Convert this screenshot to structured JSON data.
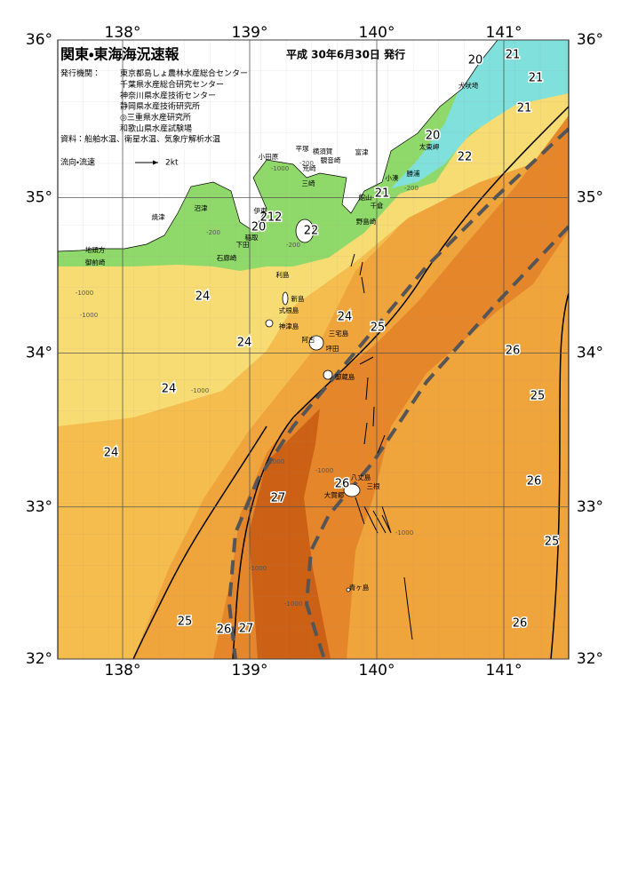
{
  "header": {
    "title": "関東・東海海況速報",
    "issue": "平成 30年6月30日 発行"
  },
  "issuers": {
    "label": "発行機関：",
    "items": [
      "東京都島しょ農林水産総合センター",
      "千葉県水産総合研究センター",
      "神奈川県水産技術センター",
      "静岡県水産技術研究所",
      "◎三重県水産研究所",
      "和歌山県水産試験場"
    ]
  },
  "materials": "資料：船舶水温、衛星水温、気象庁解析水温",
  "legend": {
    "label": "流向・流速",
    "scale": "2kt"
  },
  "axes": {
    "lon": [
      {
        "value": 138,
        "label": "138°"
      },
      {
        "value": 139,
        "label": "139°"
      },
      {
        "value": 140,
        "label": "140°"
      },
      {
        "value": 141,
        "label": "141°"
      }
    ],
    "lat": [
      {
        "value": 36,
        "label": "36°"
      },
      {
        "value": 35,
        "label": "35°"
      },
      {
        "value": 34,
        "label": "34°"
      },
      {
        "value": 33,
        "label": "33°"
      },
      {
        "value": 32,
        "label": "32°"
      }
    ]
  },
  "temperature_labels": [
    "20",
    "21",
    "21",
    "21",
    "20",
    "22",
    "21",
    "20",
    "212",
    "22",
    "24",
    "24",
    "25",
    "24",
    "26",
    "24",
    "25",
    "24",
    "26",
    "26",
    "27",
    "25",
    "25",
    "26",
    "27",
    "26"
  ],
  "place_names": [
    "犬吠埼",
    "小田原",
    "平塚",
    "横須賀",
    "観音崎",
    "荒崎",
    "三崎",
    "富津",
    "太東岬",
    "勝浦",
    "小湊",
    "館山",
    "千倉",
    "野島崎",
    "沼津",
    "焼津",
    "伊東",
    "稲取",
    "下田",
    "石廊崎",
    "地頭方",
    "御前崎",
    "利島",
    "新島",
    "式根島",
    "神津島",
    "三宅島",
    "阿古",
    "坪田",
    "御蔵島",
    "八丈島",
    "大賀郷",
    "三根",
    "青ヶ島"
  ],
  "depth_labels": [
    "-1000",
    "-200",
    "-200",
    "-200",
    "-200",
    "-1000",
    "-1000",
    "-1000",
    "-1000",
    "-1000",
    "-1000",
    "-1000",
    "-1000"
  ]
}
